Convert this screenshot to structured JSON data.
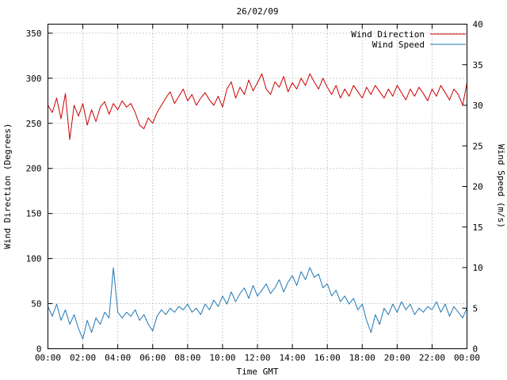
{
  "title": "26/02/09",
  "chart_data": {
    "type": "line",
    "title": "26/02/09",
    "xlabel": "Time GMT",
    "ylabel_left": "Wind Direction (Degrees)",
    "ylabel_right": "Wind Speed (m/s)",
    "x_tick_labels": [
      "00:00",
      "02:00",
      "04:00",
      "06:00",
      "08:00",
      "10:00",
      "12:00",
      "14:00",
      "16:00",
      "18:00",
      "20:00",
      "22:00",
      "00:00"
    ],
    "left_ticks": [
      0,
      50,
      100,
      150,
      200,
      250,
      300,
      350
    ],
    "right_ticks": [
      0,
      5,
      10,
      15,
      20,
      25,
      30,
      35,
      40
    ],
    "ylim_left": [
      0,
      360
    ],
    "ylim_right": [
      0,
      40
    ],
    "x_range_minutes": [
      0,
      1440
    ],
    "sample_step_minutes": 15,
    "grid": true,
    "legend_position": "top-right",
    "series": [
      {
        "name": "Wind Direction",
        "axis": "left",
        "color": "#cc0000",
        "values": [
          270,
          262,
          278,
          255,
          283,
          232,
          270,
          258,
          272,
          248,
          265,
          252,
          268,
          274,
          260,
          272,
          265,
          275,
          268,
          272,
          262,
          248,
          244,
          256,
          250,
          262,
          270,
          278,
          285,
          272,
          280,
          288,
          275,
          282,
          270,
          278,
          284,
          276,
          270,
          280,
          268,
          288,
          296,
          278,
          290,
          282,
          298,
          286,
          295,
          305,
          288,
          282,
          296,
          290,
          302,
          285,
          295,
          288,
          300,
          292,
          305,
          296,
          288,
          300,
          290,
          282,
          292,
          278,
          288,
          280,
          292,
          285,
          278,
          290,
          282,
          292,
          285,
          278,
          288,
          280,
          292,
          284,
          276,
          288,
          280,
          290,
          283,
          275,
          288,
          280,
          292,
          284,
          276,
          288,
          282,
          270,
          295
        ]
      },
      {
        "name": "Wind Speed",
        "axis": "right",
        "color": "#1f77b4",
        "values": [
          5.2,
          4.0,
          5.5,
          3.5,
          4.8,
          3.0,
          4.2,
          2.5,
          1.2,
          3.5,
          2.0,
          3.8,
          3.0,
          4.5,
          3.8,
          10.0,
          4.5,
          3.8,
          4.5,
          4.0,
          4.8,
          3.5,
          4.2,
          3.0,
          2.2,
          4.0,
          4.8,
          4.2,
          5.0,
          4.5,
          5.2,
          4.8,
          5.5,
          4.5,
          5.0,
          4.2,
          5.5,
          4.8,
          6.0,
          5.2,
          6.5,
          5.5,
          7.0,
          5.8,
          6.8,
          7.5,
          6.2,
          7.8,
          6.5,
          7.2,
          8.0,
          6.8,
          7.5,
          8.5,
          7.0,
          8.2,
          9.0,
          7.8,
          9.5,
          8.5,
          10.0,
          8.8,
          9.2,
          7.5,
          8.0,
          6.5,
          7.2,
          5.8,
          6.5,
          5.5,
          6.2,
          4.8,
          5.5,
          3.5,
          2.0,
          4.2,
          3.0,
          5.0,
          4.2,
          5.5,
          4.5,
          5.8,
          4.8,
          5.5,
          4.2,
          5.0,
          4.5,
          5.2,
          4.8,
          5.8,
          4.5,
          5.5,
          4.0,
          5.2,
          4.5,
          3.8,
          5.0
        ]
      }
    ]
  }
}
